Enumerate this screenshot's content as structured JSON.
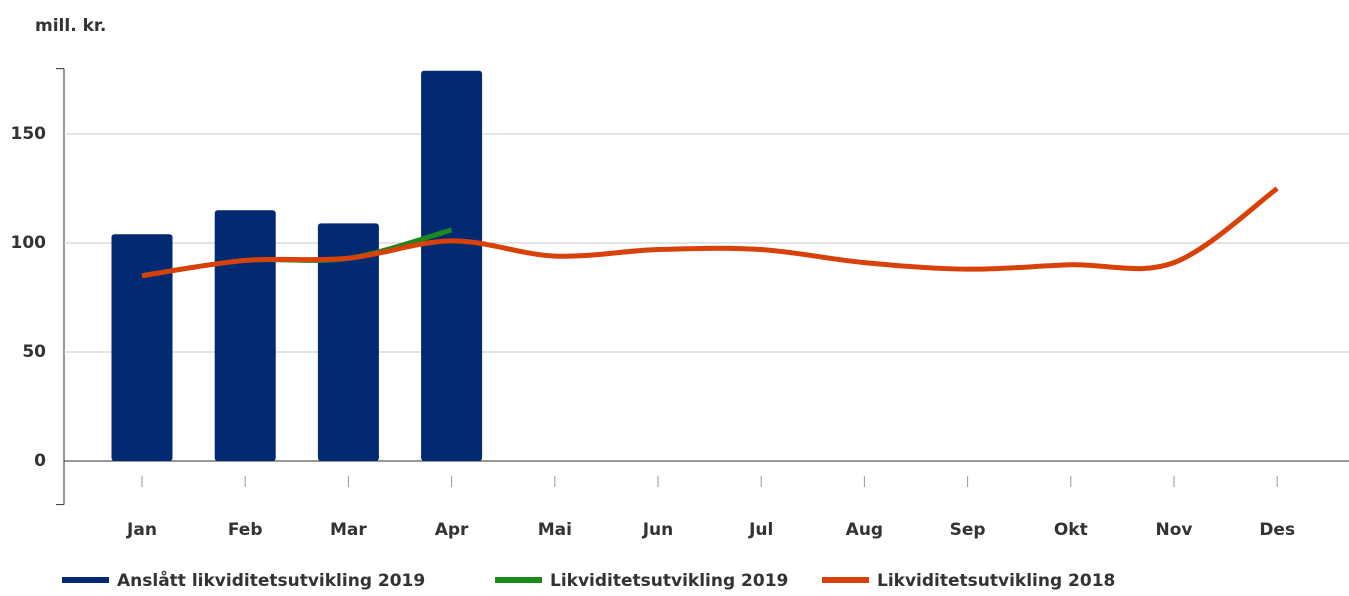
{
  "chart_data": {
    "type": "bar_line",
    "y_label": "mill. kr.",
    "categories": [
      "Jan",
      "Feb",
      "Mar",
      "Apr",
      "Mai",
      "Jun",
      "Jul",
      "Aug",
      "Sep",
      "Okt",
      "Nov",
      "Des"
    ],
    "series": [
      {
        "name": "Anslått likviditetsutvikling 2019",
        "type": "bar",
        "color": "#012a72",
        "values": [
          104,
          115,
          109,
          179,
          null,
          null,
          null,
          null,
          null,
          null,
          null,
          null
        ]
      },
      {
        "name": "Likviditetsutvikling 2019",
        "type": "line",
        "color": "#1a8a1a",
        "values": [
          85,
          92,
          93,
          106,
          null,
          null,
          null,
          null,
          null,
          null,
          null,
          null
        ]
      },
      {
        "name": "Likviditetsutvikling 2018",
        "type": "line",
        "color": "#d9410a",
        "values": [
          85,
          92,
          93,
          101,
          94,
          97,
          97,
          91,
          88,
          90,
          91,
          125
        ]
      }
    ],
    "ylim": [
      -20,
      180
    ],
    "yticks": [
      0,
      50,
      100,
      150
    ],
    "grid": true
  }
}
